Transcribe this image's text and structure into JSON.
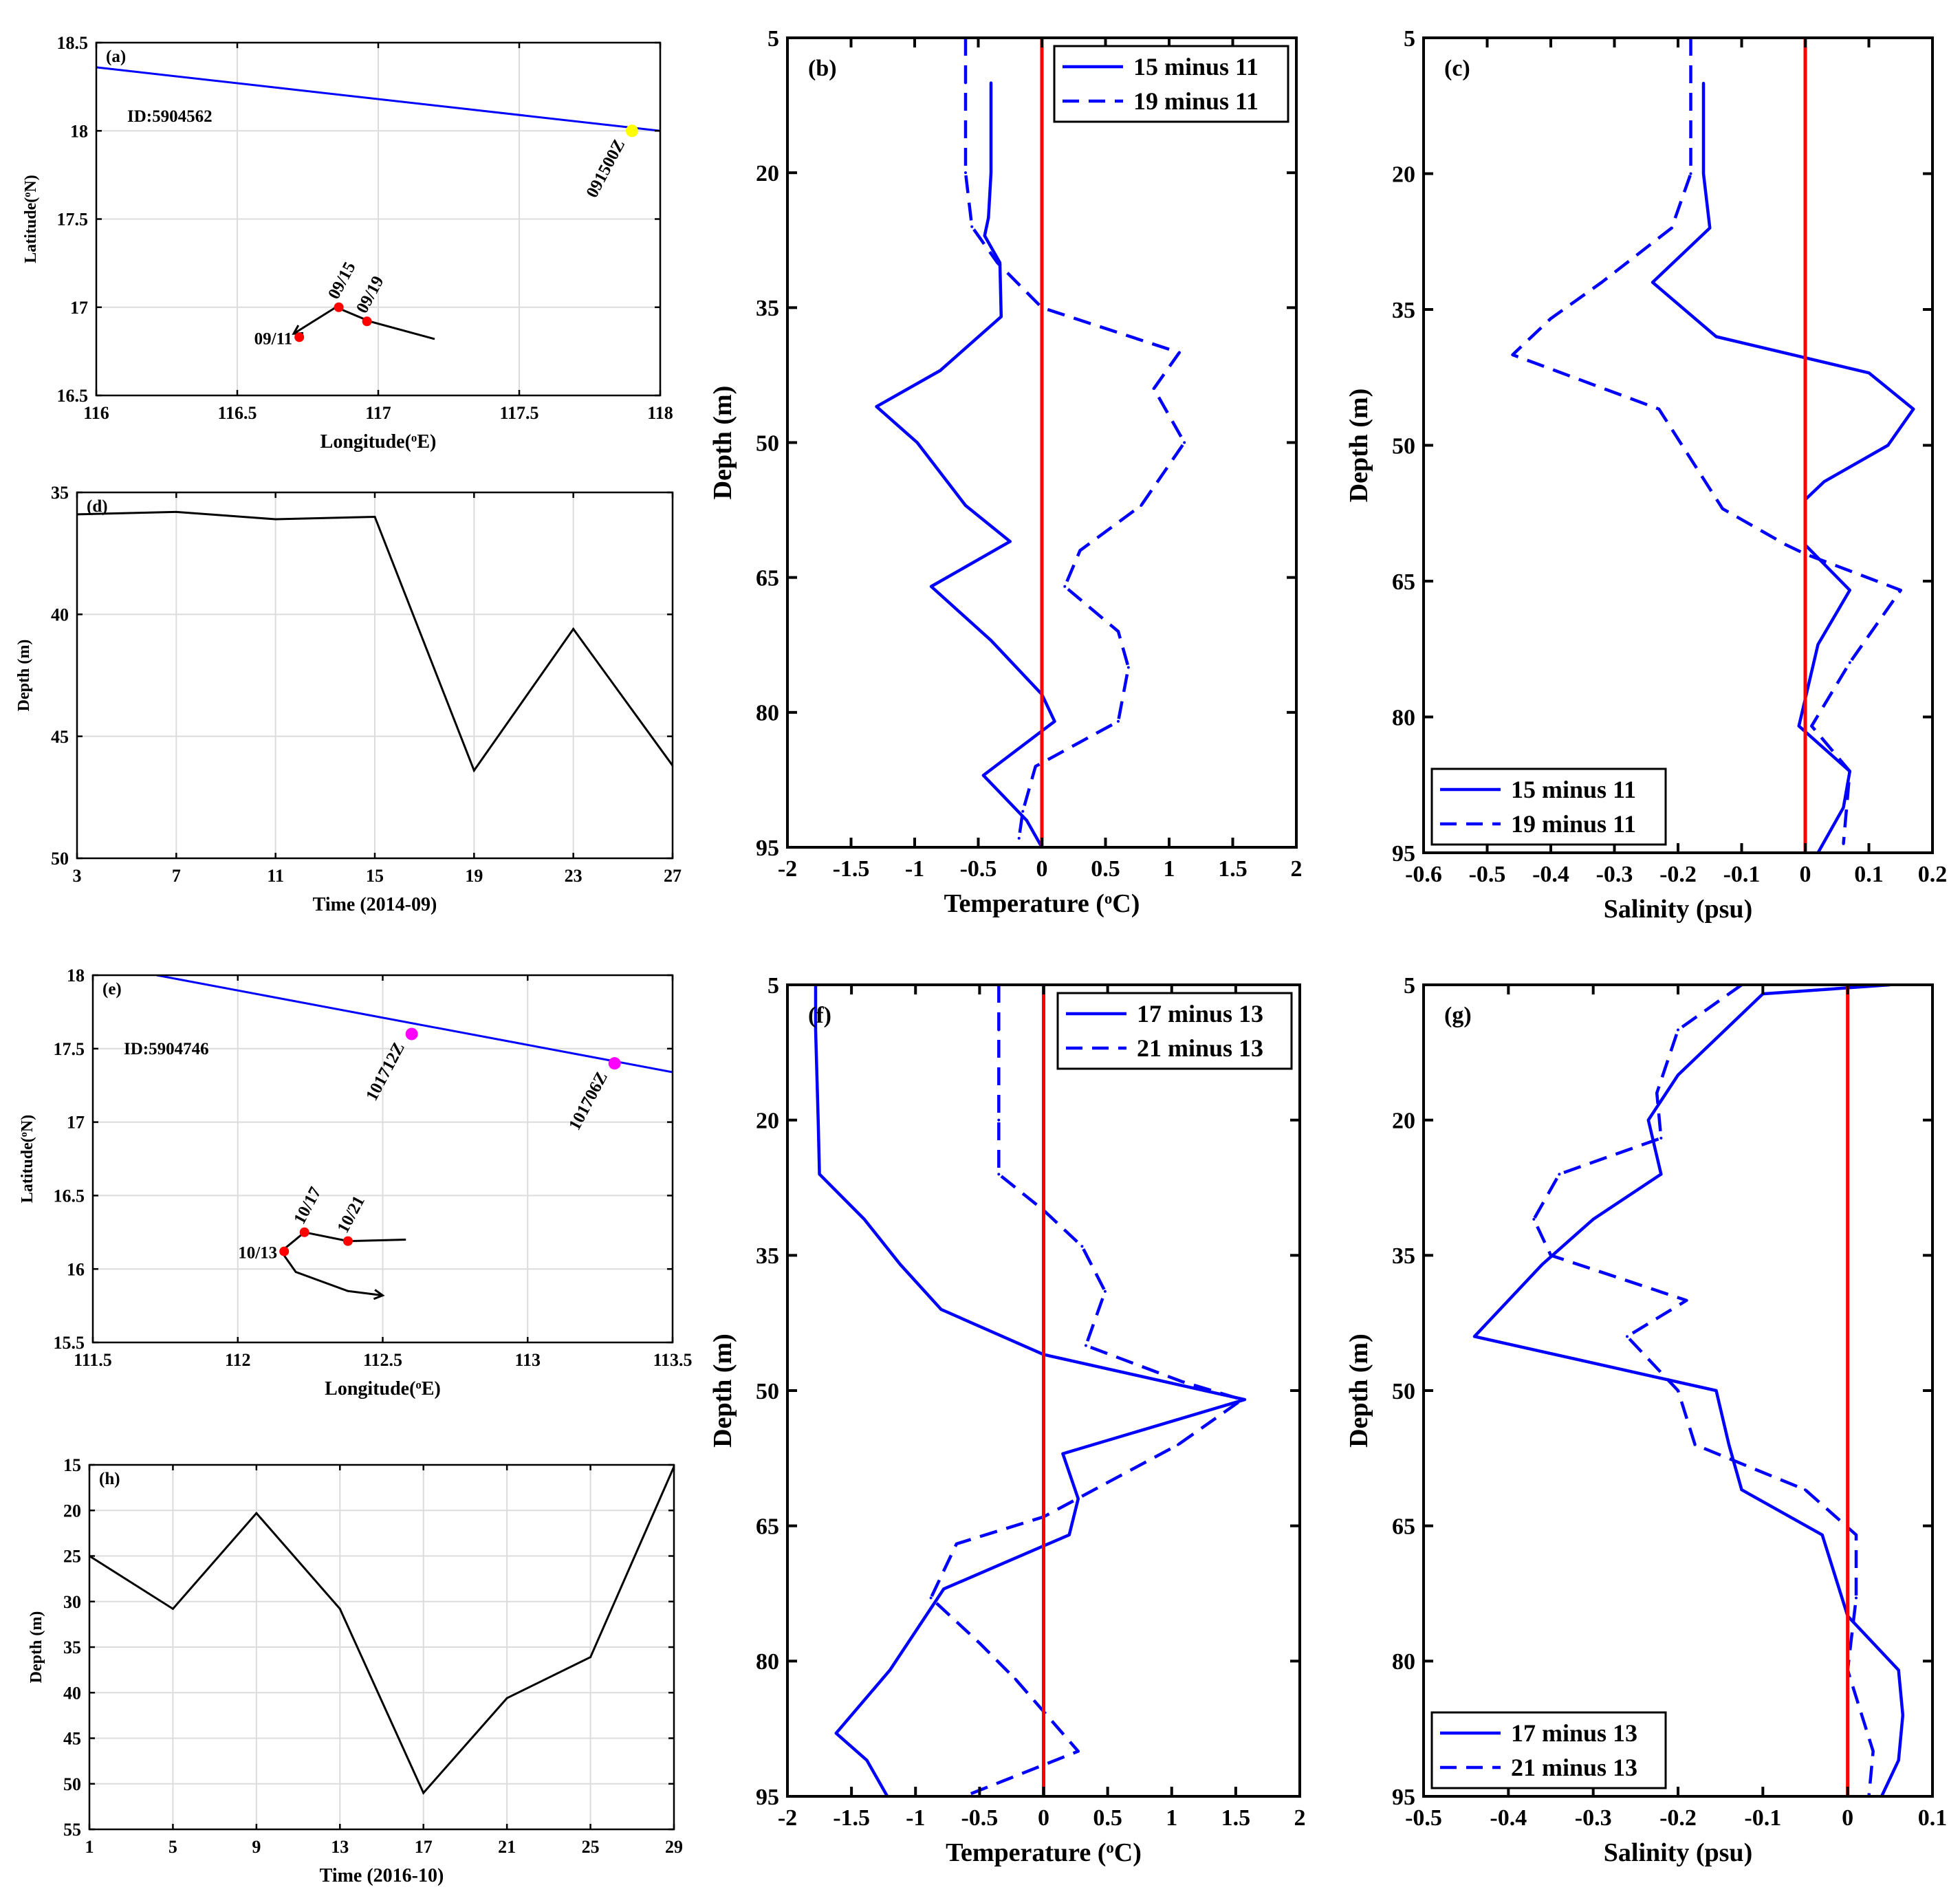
{
  "chart_data": [
    {
      "id": "a",
      "type": "map",
      "panel_label": "(a)",
      "xlabel": "Longitude(°E)",
      "ylabel": "Latitude(°N)",
      "xlim": [
        116,
        118
      ],
      "ylim": [
        16.5,
        18.5
      ],
      "xticks": [
        116,
        116.5,
        117,
        117.5,
        118
      ],
      "yticks": [
        16.5,
        17,
        17.5,
        18,
        18.5
      ],
      "id_label": "ID:5904562",
      "lines": [
        {
          "name": "transect",
          "color": "#0000ff",
          "points": [
            [
              116,
              18.36
            ],
            [
              118,
              18.0
            ]
          ]
        },
        {
          "name": "float-track",
          "color": "#000000",
          "points": [
            [
              116.7,
              16.85
            ],
            [
              116.77,
              16.92
            ],
            [
              116.85,
              17.0
            ],
            [
              116.97,
              16.92
            ],
            [
              117.2,
              16.82
            ]
          ]
        }
      ],
      "markers": [
        {
          "label": "091500Z",
          "lon": 117.9,
          "lat": 18.0,
          "color": "#ffff00"
        },
        {
          "label": "09/11",
          "lon": 116.72,
          "lat": 16.83,
          "color": "#ff0000"
        },
        {
          "label": "09/15",
          "lon": 116.86,
          "lat": 17.0,
          "color": "#ff0000"
        },
        {
          "label": "09/19",
          "lon": 116.96,
          "lat": 16.92,
          "color": "#ff0000"
        }
      ]
    },
    {
      "id": "d",
      "type": "line",
      "panel_label": "(d)",
      "xlabel": "Time (2014-09)",
      "ylabel": "Depth (m)",
      "xlim": [
        3,
        27
      ],
      "ylim": [
        35,
        50
      ],
      "xticks": [
        3,
        7,
        11,
        15,
        19,
        23,
        27
      ],
      "yticks": [
        35,
        40,
        45,
        50
      ],
      "series": [
        {
          "name": "depth",
          "color": "#000000",
          "x": [
            3,
            7,
            11,
            15,
            19,
            23,
            27
          ],
          "y": [
            35.9,
            35.8,
            36.1,
            36.0,
            46.4,
            40.6,
            46.2
          ]
        }
      ]
    },
    {
      "id": "b",
      "type": "line",
      "panel_label": "(b)",
      "xlabel": "Temperature (°C)",
      "ylabel": "Depth (m)",
      "xlim": [
        -2,
        2
      ],
      "ylim": [
        5,
        95
      ],
      "xticks": [
        -2,
        -1.5,
        -1,
        -0.5,
        0,
        0.5,
        1,
        1.5,
        2
      ],
      "yticks": [
        5,
        20,
        35,
        50,
        65,
        80,
        95
      ],
      "legend": {
        "position": "top-right",
        "entries": [
          "15 minus 11",
          "19 minus 11"
        ]
      },
      "series": [
        {
          "name": "15 minus 11",
          "dash": "solid",
          "x": [
            -0.4,
            -0.4,
            -0.42,
            -0.45,
            -0.33,
            -0.32,
            -0.8,
            -1.3,
            -0.98,
            -0.6,
            -0.25,
            -0.87,
            -0.4,
            0,
            0.1,
            -0.46,
            -0.12,
            0
          ],
          "y": [
            10,
            20,
            25,
            27,
            30,
            36,
            42,
            46,
            50,
            57,
            61,
            66,
            72,
            78,
            81,
            87,
            92,
            95
          ]
        },
        {
          "name": "19 minus 11",
          "dash": "dashed",
          "x": [
            -0.6,
            -0.6,
            -0.6,
            -0.55,
            -0.35,
            0,
            1.08,
            0.88,
            1.12,
            0.78,
            0.3,
            0.18,
            0.6,
            0.68,
            0.6,
            -0.05,
            -0.15,
            -0.18
          ],
          "y": [
            5,
            10,
            20,
            26,
            30,
            35,
            40,
            44,
            50,
            57,
            62,
            66,
            71,
            75,
            81,
            86,
            91,
            94
          ]
        }
      ]
    },
    {
      "id": "c",
      "type": "line",
      "panel_label": "(c)",
      "xlabel": "Salinity (psu)",
      "ylabel": "Depth (m)",
      "xlim": [
        -0.6,
        0.2
      ],
      "ylim": [
        5,
        95
      ],
      "xticks": [
        -0.6,
        -0.5,
        -0.4,
        -0.3,
        -0.2,
        -0.1,
        0,
        0.1,
        0.2
      ],
      "yticks": [
        5,
        20,
        35,
        50,
        65,
        80,
        95
      ],
      "legend": {
        "position": "bottom-left",
        "entries": [
          "15 minus 11",
          "19 minus 11"
        ]
      },
      "series": [
        {
          "name": "15 minus 11",
          "dash": "solid",
          "x": [
            -0.16,
            -0.16,
            -0.15,
            -0.24,
            -0.14,
            0.1,
            0.17,
            0.13,
            0.03,
            0.0,
            0.0,
            0.07,
            0.02,
            0.0,
            -0.01,
            0.07,
            0.06,
            0.02
          ],
          "y": [
            10,
            20,
            26,
            32,
            38,
            42,
            46,
            50,
            54,
            56,
            61,
            66,
            72,
            78,
            81,
            86,
            90,
            95
          ]
        },
        {
          "name": "19 minus 11",
          "dash": "dashed",
          "x": [
            -0.18,
            -0.18,
            -0.21,
            -0.32,
            -0.4,
            -0.46,
            -0.23,
            -0.13,
            -0.03,
            0.0,
            0.15,
            0.07,
            0.01,
            0.07,
            0.06
          ],
          "y": [
            5,
            20,
            26,
            32,
            36,
            40,
            46,
            57,
            61,
            62,
            66,
            74,
            81,
            86,
            94
          ]
        }
      ]
    },
    {
      "id": "e",
      "type": "map",
      "panel_label": "(e)",
      "xlabel": "Longitude(°E)",
      "ylabel": "Latitude(°N)",
      "xlim": [
        111.5,
        113.5
      ],
      "ylim": [
        15.5,
        18
      ],
      "xticks": [
        111.5,
        112,
        112.5,
        113,
        113.5
      ],
      "yticks": [
        15.5,
        16,
        16.5,
        17,
        17.5,
        18
      ],
      "id_label": "ID:5904746",
      "lines": [
        {
          "name": "transect",
          "color": "#0000ff",
          "points": [
            [
              111.72,
              18.0
            ],
            [
              113.5,
              17.34
            ]
          ]
        },
        {
          "name": "float-track",
          "color": "#000000",
          "points": [
            [
              112.5,
              15.82
            ],
            [
              112.38,
              15.85
            ],
            [
              112.2,
              15.98
            ],
            [
              112.15,
              16.12
            ],
            [
              112.23,
              16.25
            ],
            [
              112.38,
              16.19
            ],
            [
              112.58,
              16.2
            ]
          ]
        }
      ],
      "markers": [
        {
          "label": "101712Z",
          "lon": 112.6,
          "lat": 17.6,
          "color": "#ff00ff"
        },
        {
          "label": "101706Z",
          "lon": 113.3,
          "lat": 17.4,
          "color": "#ff00ff"
        },
        {
          "label": "10/13",
          "lon": 112.16,
          "lat": 16.12,
          "color": "#ff0000"
        },
        {
          "label": "10/17",
          "lon": 112.23,
          "lat": 16.25,
          "color": "#ff0000"
        },
        {
          "label": "10/21",
          "lon": 112.38,
          "lat": 16.19,
          "color": "#ff0000"
        }
      ]
    },
    {
      "id": "h",
      "type": "line",
      "panel_label": "(h)",
      "xlabel": "Time (2016-10)",
      "ylabel": "Depth (m)",
      "xlim": [
        1,
        29
      ],
      "ylim": [
        15,
        55
      ],
      "xticks": [
        1,
        5,
        9,
        13,
        17,
        21,
        25,
        29
      ],
      "yticks": [
        15,
        20,
        25,
        30,
        35,
        40,
        45,
        50,
        55
      ],
      "series": [
        {
          "name": "depth",
          "color": "#000000",
          "x": [
            1,
            5,
            9,
            13,
            17,
            21,
            25,
            29
          ],
          "y": [
            25.0,
            30.8,
            20.3,
            30.8,
            51.0,
            40.6,
            36.1,
            15.2
          ]
        }
      ]
    },
    {
      "id": "f",
      "type": "line",
      "panel_label": "(f)",
      "xlabel": "Temperature (°C)",
      "ylabel": "Depth (m)",
      "xlim": [
        -2,
        2
      ],
      "ylim": [
        5,
        95
      ],
      "xticks": [
        -2,
        -1.5,
        -1,
        -0.5,
        0,
        0.5,
        1,
        1.5,
        2
      ],
      "yticks": [
        5,
        20,
        35,
        50,
        65,
        80,
        95
      ],
      "legend": {
        "position": "top-right",
        "entries": [
          "17 minus 13",
          "21 minus 13"
        ]
      },
      "series": [
        {
          "name": "17 minus 13",
          "dash": "solid",
          "x": [
            -1.78,
            -1.78,
            -1.76,
            -1.75,
            -1.4,
            -1.12,
            -0.8,
            0,
            1.57,
            0.15,
            0.27,
            0.2,
            -0.78,
            -1.2,
            -1.62,
            -1.38,
            -1.22
          ],
          "y": [
            5,
            10,
            20,
            26,
            31,
            36,
            41,
            46,
            51,
            57,
            62,
            66,
            72,
            81,
            88,
            91,
            95
          ]
        },
        {
          "name": "21 minus 13",
          "dash": "dashed",
          "x": [
            -0.35,
            -0.35,
            -0.35,
            -0.35,
            0.0,
            0.3,
            0.48,
            0.33,
            1.08,
            1.55,
            1.05,
            0.0,
            -0.68,
            -0.88,
            -0.5,
            -0.22,
            0.27,
            -0.62
          ],
          "y": [
            5,
            10,
            20,
            26,
            30,
            34,
            39,
            45,
            49,
            51,
            56,
            64,
            67,
            73,
            78,
            82,
            90,
            95
          ]
        }
      ]
    },
    {
      "id": "g",
      "type": "line",
      "panel_label": "(g)",
      "xlabel": "Salinity (psu)",
      "ylabel": "Depth (m)",
      "xlim": [
        -0.5,
        0.1
      ],
      "ylim": [
        5,
        95
      ],
      "xticks": [
        -0.5,
        -0.4,
        -0.3,
        -0.2,
        -0.1,
        0,
        0.1
      ],
      "yticks": [
        5,
        20,
        35,
        50,
        65,
        80,
        95
      ],
      "legend": {
        "position": "bottom-left",
        "entries": [
          "17 minus 13",
          "21 minus 13"
        ]
      },
      "series": [
        {
          "name": "17 minus 13",
          "dash": "solid",
          "x": [
            0.05,
            -0.1,
            -0.2,
            -0.235,
            -0.23,
            -0.22,
            -0.3,
            -0.36,
            -0.44,
            -0.155,
            -0.14,
            -0.125,
            -0.03,
            0.0,
            0.06,
            0.065,
            0.06,
            0.04
          ],
          "y": [
            5,
            6,
            15,
            20,
            22,
            26,
            31,
            36,
            44,
            50,
            56,
            61,
            66,
            75,
            81,
            86,
            91,
            95
          ]
        },
        {
          "name": "21 minus 13",
          "dash": "dashed",
          "x": [
            -0.125,
            -0.2,
            -0.225,
            -0.22,
            -0.34,
            -0.37,
            -0.35,
            -0.19,
            -0.26,
            -0.2,
            -0.18,
            -0.05,
            0.01,
            0.01,
            0.0,
            0.03,
            0.025
          ],
          "y": [
            5,
            10,
            17,
            22,
            26,
            31,
            35,
            40,
            44,
            50,
            56,
            61,
            66,
            73,
            81,
            90,
            95
          ]
        }
      ]
    }
  ]
}
